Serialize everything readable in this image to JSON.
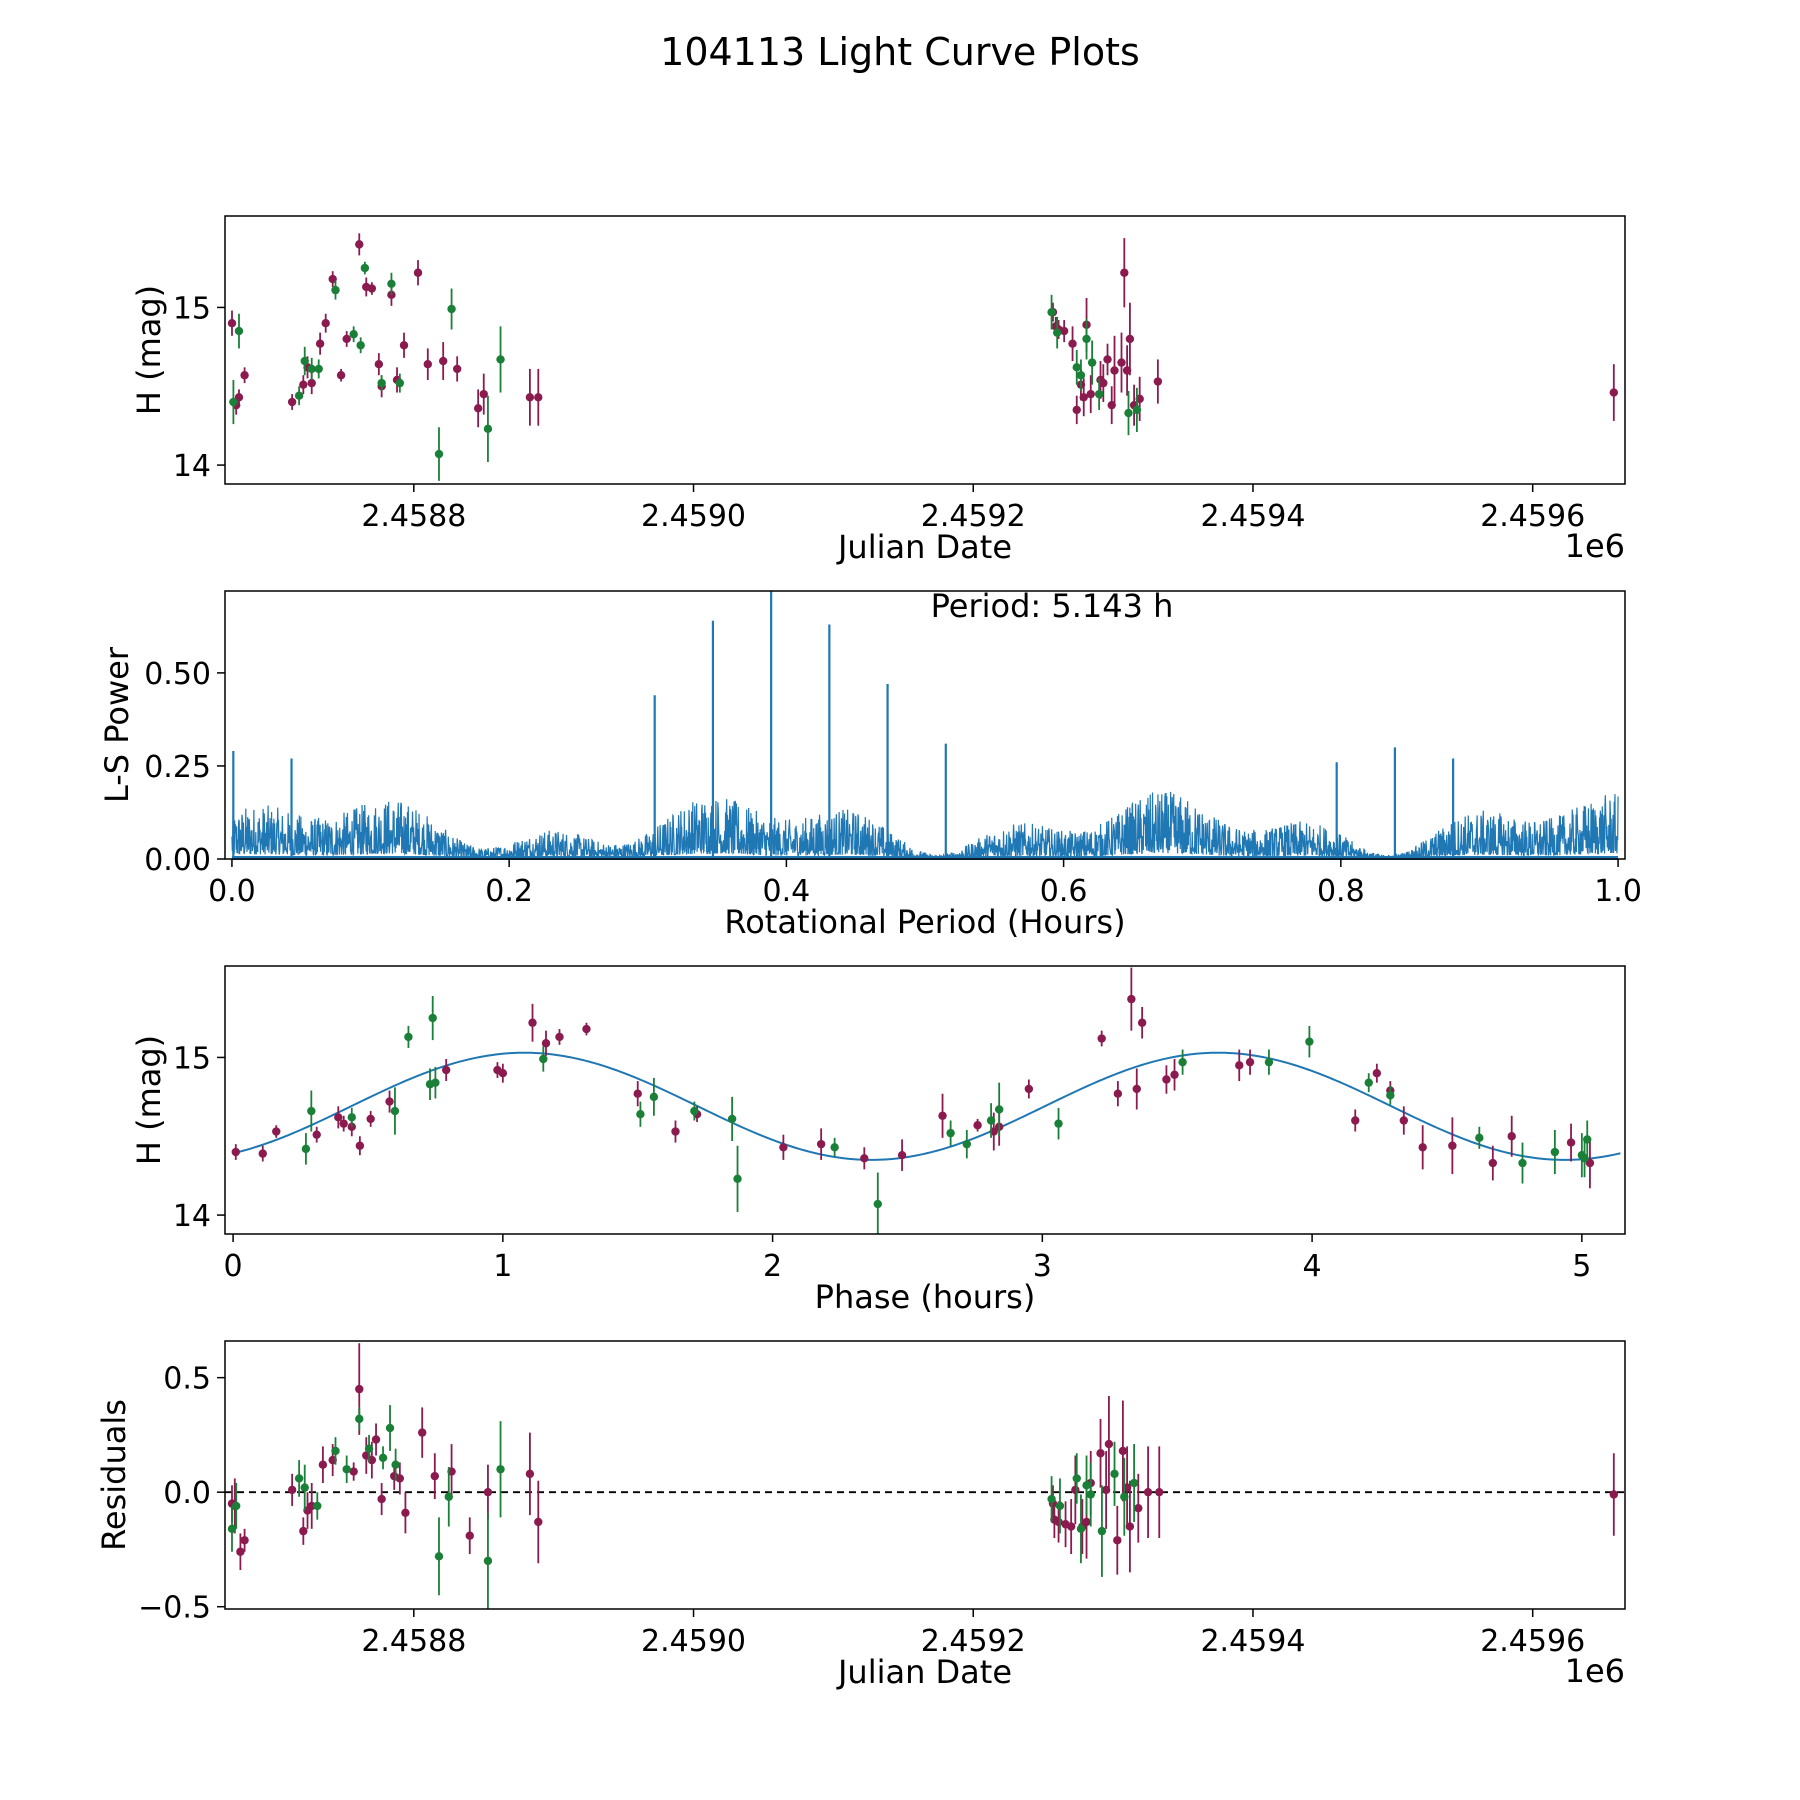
{
  "figure_title": "104113 Light Curve Plots",
  "colors": {
    "magenta": "#8b1a4f",
    "green": "#1a7f37",
    "line": "#1f77b4",
    "axis": "#000000"
  },
  "chart_data": [
    {
      "id": "lightcurve",
      "type": "scatter",
      "xlabel": "Julian Date",
      "ylabel": "H (mag)",
      "xlim": [
        2458665,
        2459666
      ],
      "ylim": [
        13.88,
        15.58
      ],
      "xticks": [
        2458800,
        2459000,
        2459200,
        2459400,
        2459600
      ],
      "xtick_labels": [
        "2.4588",
        "2.4590",
        "2.4592",
        "2.4594",
        "2.4596"
      ],
      "offset_label": "1e6",
      "yticks": [
        14,
        15
      ],
      "ytick_labels": [
        "14",
        "15"
      ],
      "series": [
        {
          "name": "magenta",
          "color": "#8b1a4f",
          "x": [
            2458670,
            2458673,
            2458675,
            2458679,
            2458713,
            2458721,
            2458724,
            2458727,
            2458733,
            2458737,
            2458742,
            2458748,
            2458752,
            2458761,
            2458766,
            2458770,
            2458775,
            2458777,
            2458784,
            2458788,
            2458793,
            2458803,
            2458810,
            2458821,
            2458831,
            2458846,
            2458850,
            2458883,
            2458889,
            2459257,
            2459259,
            2459261,
            2459265,
            2459271,
            2459274,
            2459277,
            2459279,
            2459281,
            2459284,
            2459291,
            2459293,
            2459296,
            2459299,
            2459301,
            2459306,
            2459308,
            2459310,
            2459312,
            2459315,
            2459319,
            2459332,
            2459658
          ],
          "y": [
            14.9,
            14.38,
            14.43,
            14.57,
            14.4,
            14.51,
            14.62,
            14.52,
            14.77,
            14.9,
            15.18,
            14.57,
            14.8,
            15.4,
            15.13,
            15.12,
            14.64,
            14.5,
            15.08,
            14.54,
            14.76,
            15.22,
            14.64,
            14.66,
            14.61,
            14.36,
            14.45,
            14.43,
            14.43,
            14.97,
            14.88,
            14.86,
            14.85,
            14.77,
            14.35,
            14.51,
            14.43,
            14.89,
            14.45,
            14.54,
            14.52,
            14.67,
            14.38,
            14.6,
            14.65,
            15.22,
            14.6,
            14.8,
            14.38,
            14.42,
            14.53,
            14.46
          ],
          "err": [
            0.08,
            0.06,
            0.05,
            0.05,
            0.05,
            0.06,
            0.07,
            0.07,
            0.07,
            0.06,
            0.05,
            0.04,
            0.05,
            0.07,
            0.06,
            0.04,
            0.07,
            0.07,
            0.07,
            0.08,
            0.08,
            0.08,
            0.1,
            0.12,
            0.08,
            0.12,
            0.13,
            0.18,
            0.18,
            0.06,
            0.06,
            0.06,
            0.07,
            0.11,
            0.09,
            0.1,
            0.12,
            0.17,
            0.12,
            0.12,
            0.12,
            0.1,
            0.12,
            0.22,
            0.19,
            0.22,
            0.16,
            0.23,
            0.13,
            0.14,
            0.14,
            0.18
          ]
        },
        {
          "name": "green",
          "color": "#1a7f37",
          "x": [
            2458671,
            2458675,
            2458718,
            2458722,
            2458727,
            2458732,
            2458744,
            2458757,
            2458762,
            2458765,
            2458777,
            2458784,
            2458790,
            2458818,
            2458827,
            2458853,
            2458862,
            2459256,
            2459260,
            2459274,
            2459277,
            2459281,
            2459285,
            2459290,
            2459311,
            2459317
          ],
          "y": [
            14.4,
            14.85,
            14.44,
            14.66,
            14.61,
            14.61,
            15.11,
            14.83,
            14.76,
            15.25,
            14.52,
            15.15,
            14.52,
            14.07,
            14.99,
            14.23,
            14.67,
            14.97,
            14.84,
            14.62,
            14.57,
            14.8,
            14.65,
            14.45,
            14.33,
            14.35
          ],
          "err": [
            0.14,
            0.11,
            0.06,
            0.09,
            0.07,
            0.06,
            0.06,
            0.05,
            0.05,
            0.04,
            0.05,
            0.07,
            0.06,
            0.17,
            0.13,
            0.21,
            0.21,
            0.11,
            0.1,
            0.11,
            0.1,
            0.13,
            0.14,
            0.1,
            0.14,
            0.14
          ]
        }
      ]
    },
    {
      "id": "periodogram",
      "type": "line",
      "annotation": "Period: 5.143 h",
      "xlabel": "Rotational Period (Hours)",
      "ylabel": "L-S Power",
      "xlim": [
        -0.005,
        1.005
      ],
      "ylim": [
        0,
        0.72
      ],
      "xticks": [
        0,
        0.2,
        0.4,
        0.6,
        0.8,
        1.0
      ],
      "xtick_labels": [
        "0.0",
        "0.2",
        "0.4",
        "0.6",
        "0.8",
        "1.0"
      ],
      "yticks": [
        0,
        0.25,
        0.5
      ],
      "ytick_labels": [
        "0.00",
        "0.25",
        "0.50"
      ],
      "peaks": {
        "x": [
          0.001,
          0.043,
          0.305,
          0.347,
          0.389,
          0.431,
          0.473,
          0.515,
          0.797,
          0.839,
          0.881
        ],
        "y": [
          0.29,
          0.27,
          0.44,
          0.64,
          0.72,
          0.63,
          0.47,
          0.31,
          0.26,
          0.3,
          0.27
        ]
      }
    },
    {
      "id": "phased",
      "type": "scatter",
      "xlabel": "Phase (hours)",
      "ylabel": "H (mag)",
      "xlim": [
        -0.03,
        5.16
      ],
      "ylim": [
        13.88,
        15.58
      ],
      "xticks": [
        0,
        1,
        2,
        3,
        4,
        5
      ],
      "xtick_labels": [
        "0",
        "1",
        "2",
        "3",
        "4",
        "5"
      ],
      "yticks": [
        14,
        15
      ],
      "ytick_labels": [
        "14",
        "15"
      ],
      "model": {
        "mean": 14.69,
        "amplitude": 0.34,
        "period": 2.5715,
        "peak_phase": 1.08
      },
      "series": [
        {
          "name": "magenta",
          "color": "#8b1a4f",
          "x": [
            0.01,
            0.11,
            0.16,
            0.31,
            0.39,
            0.41,
            0.44,
            0.47,
            0.51,
            0.58,
            0.79,
            0.98,
            1.0,
            1.11,
            1.16,
            1.21,
            1.31,
            1.5,
            1.64,
            1.72,
            2.04,
            2.18,
            2.34,
            2.48,
            2.63,
            2.76,
            2.82,
            2.84,
            2.95,
            3.22,
            3.28,
            3.33,
            3.35,
            3.37,
            3.46,
            3.49,
            3.73,
            3.77,
            4.16,
            4.24,
            4.29,
            4.34,
            4.41,
            4.52,
            4.67,
            4.74,
            4.96,
            5.03
          ],
          "y": [
            14.4,
            14.39,
            14.53,
            14.51,
            14.62,
            14.58,
            14.56,
            14.44,
            14.61,
            14.72,
            14.92,
            14.92,
            14.9,
            15.22,
            15.09,
            15.13,
            15.18,
            14.77,
            14.53,
            14.64,
            14.43,
            14.45,
            14.36,
            14.38,
            14.63,
            14.57,
            14.53,
            14.56,
            14.8,
            15.12,
            14.77,
            15.37,
            14.8,
            15.22,
            14.86,
            14.89,
            14.95,
            14.97,
            14.6,
            14.9,
            14.79,
            14.6,
            14.43,
            14.44,
            14.33,
            14.5,
            14.46,
            14.33
          ],
          "err": [
            0.05,
            0.05,
            0.04,
            0.05,
            0.07,
            0.05,
            0.06,
            0.06,
            0.05,
            0.07,
            0.07,
            0.05,
            0.06,
            0.12,
            0.08,
            0.05,
            0.04,
            0.08,
            0.07,
            0.05,
            0.08,
            0.1,
            0.07,
            0.1,
            0.14,
            0.04,
            0.12,
            0.12,
            0.06,
            0.05,
            0.08,
            0.2,
            0.13,
            0.1,
            0.09,
            0.1,
            0.1,
            0.08,
            0.07,
            0.06,
            0.06,
            0.09,
            0.14,
            0.18,
            0.11,
            0.13,
            0.12,
            0.16
          ]
        },
        {
          "name": "green",
          "color": "#1a7f37",
          "x": [
            0.27,
            0.29,
            0.44,
            0.6,
            0.65,
            0.73,
            0.74,
            0.75,
            1.15,
            1.51,
            1.56,
            1.71,
            1.85,
            1.87,
            2.23,
            2.39,
            2.66,
            2.72,
            2.81,
            2.84,
            3.06,
            3.52,
            3.84,
            3.99,
            4.21,
            4.29,
            4.62,
            4.78,
            4.9,
            5.0,
            5.01,
            5.02
          ],
          "y": [
            14.42,
            14.66,
            14.62,
            14.66,
            15.13,
            14.83,
            15.25,
            14.84,
            14.99,
            14.64,
            14.75,
            14.66,
            14.61,
            14.23,
            14.43,
            14.07,
            14.52,
            14.45,
            14.6,
            14.67,
            14.58,
            14.97,
            14.97,
            15.1,
            14.84,
            14.76,
            14.49,
            14.33,
            14.4,
            14.38,
            14.36,
            14.48
          ],
          "err": [
            0.1,
            0.13,
            0.06,
            0.15,
            0.07,
            0.1,
            0.14,
            0.1,
            0.08,
            0.08,
            0.12,
            0.06,
            0.14,
            0.21,
            0.06,
            0.2,
            0.08,
            0.09,
            0.11,
            0.17,
            0.1,
            0.08,
            0.08,
            0.1,
            0.06,
            0.06,
            0.07,
            0.13,
            0.14,
            0.14,
            0.12,
            0.12
          ]
        }
      ]
    },
    {
      "id": "residuals",
      "type": "scatter",
      "xlabel": "Julian Date",
      "ylabel": "Residuals",
      "xlim": [
        2458665,
        2459666
      ],
      "ylim": [
        -0.51,
        0.66
      ],
      "xticks": [
        2458800,
        2459000,
        2459200,
        2459400,
        2459600
      ],
      "xtick_labels": [
        "2.4588",
        "2.4590",
        "2.4592",
        "2.4594",
        "2.4596"
      ],
      "offset_label": "1e6",
      "yticks": [
        -0.5,
        0.0,
        0.5
      ],
      "ytick_labels": [
        "−0.5",
        "0.0",
        "0.5"
      ],
      "reference_line": 0,
      "series": [
        {
          "name": "magenta",
          "color": "#8b1a4f",
          "x": [
            2458670,
            2458672,
            2458676,
            2458679,
            2458713,
            2458721,
            2458724,
            2458727,
            2458735,
            2458742,
            2458757,
            2458761,
            2458766,
            2458770,
            2458773,
            2458777,
            2458786,
            2458790,
            2458794,
            2458806,
            2458815,
            2458827,
            2458840,
            2458853,
            2458883,
            2458889,
            2459257,
            2459258,
            2459261,
            2459266,
            2459270,
            2459273,
            2459278,
            2459281,
            2459284,
            2459291,
            2459295,
            2459297,
            2459303,
            2459307,
            2459310,
            2459312,
            2459318,
            2459325,
            2459333,
            2459658
          ],
          "y": [
            -0.05,
            -0.06,
            -0.26,
            -0.21,
            0.01,
            -0.17,
            -0.08,
            -0.06,
            0.12,
            0.14,
            0.09,
            0.45,
            0.16,
            0.14,
            0.23,
            -0.03,
            0.07,
            0.06,
            -0.09,
            0.26,
            0.07,
            0.09,
            -0.19,
            0.0,
            0.08,
            -0.13,
            -0.05,
            -0.12,
            -0.13,
            -0.14,
            -0.15,
            0.01,
            -0.15,
            -0.13,
            0.04,
            0.17,
            0.01,
            0.21,
            -0.21,
            0.18,
            0.02,
            -0.15,
            -0.07,
            0.0,
            0.0,
            -0.01
          ],
          "err": [
            0.08,
            0.12,
            0.08,
            0.05,
            0.07,
            0.06,
            0.08,
            0.1,
            0.08,
            0.07,
            0.04,
            0.2,
            0.08,
            0.08,
            0.07,
            0.07,
            0.06,
            0.07,
            0.09,
            0.11,
            0.1,
            0.12,
            0.08,
            0.12,
            0.18,
            0.18,
            0.08,
            0.08,
            0.09,
            0.1,
            0.12,
            0.15,
            0.12,
            0.16,
            0.14,
            0.15,
            0.17,
            0.21,
            0.15,
            0.22,
            0.18,
            0.2,
            0.15,
            0.2,
            0.2,
            0.18
          ]
        },
        {
          "name": "green",
          "color": "#1a7f37",
          "x": [
            2458670,
            2458673,
            2458718,
            2458722,
            2458731,
            2458744,
            2458752,
            2458761,
            2458768,
            2458778,
            2458783,
            2458787,
            2458818,
            2458825,
            2458853,
            2458862,
            2459256,
            2459262,
            2459274,
            2459277,
            2459281,
            2459284,
            2459292,
            2459301,
            2459308,
            2459315
          ],
          "y": [
            -0.16,
            -0.06,
            0.06,
            0.02,
            -0.06,
            0.18,
            0.1,
            0.32,
            0.19,
            0.15,
            0.28,
            0.12,
            -0.28,
            -0.02,
            -0.3,
            0.1,
            -0.03,
            -0.06,
            0.06,
            -0.16,
            0.03,
            -0.01,
            -0.17,
            0.08,
            -0.02,
            0.04
          ],
          "err": [
            0.1,
            0.1,
            0.08,
            0.1,
            0.06,
            0.06,
            0.06,
            0.05,
            0.06,
            0.05,
            0.1,
            0.07,
            0.17,
            0.13,
            0.21,
            0.21,
            0.1,
            0.12,
            0.11,
            0.15,
            0.13,
            0.14,
            0.2,
            0.14,
            0.17,
            0.17
          ]
        }
      ]
    }
  ]
}
